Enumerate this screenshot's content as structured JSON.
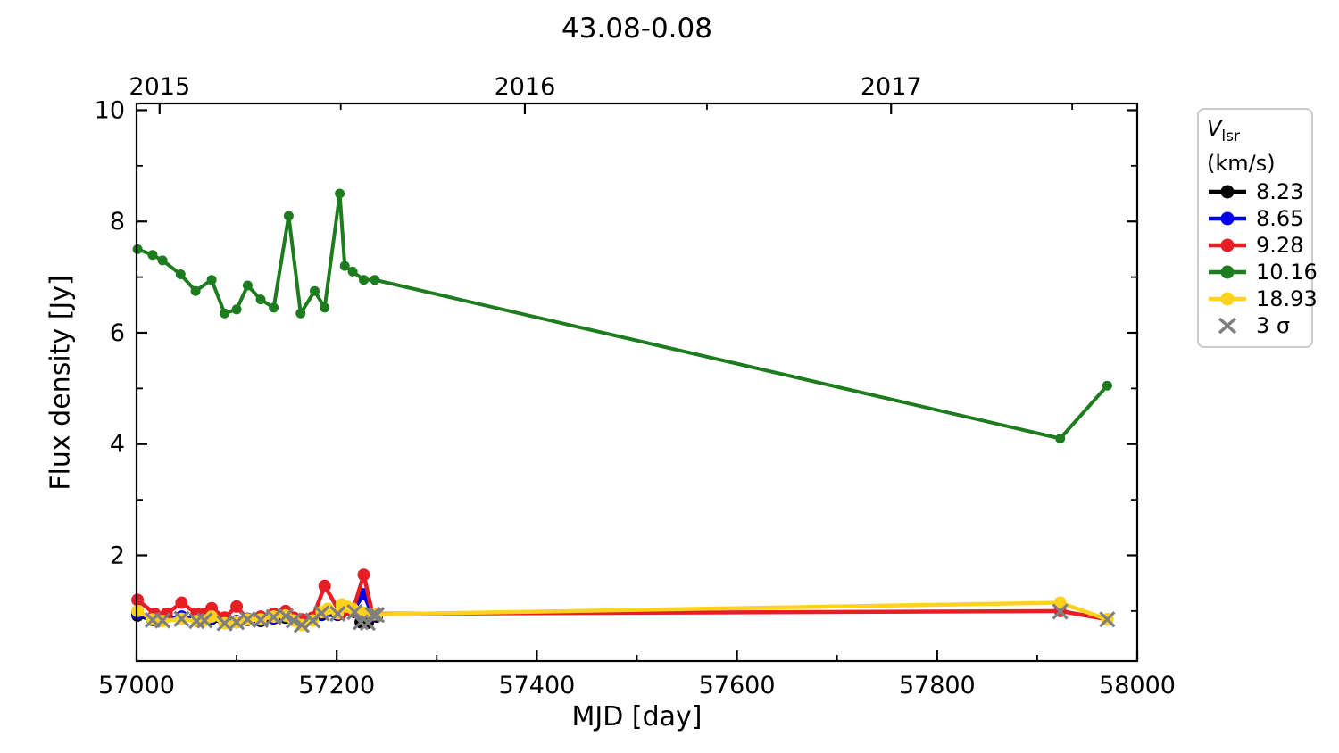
{
  "title": "43.08-0.08",
  "axes": {
    "xlabel": "MJD [day]",
    "ylabel": "Flux density [Jy]",
    "x_range": [
      57000,
      58000
    ],
    "y_range": [
      0.1,
      10.12
    ],
    "x_major_ticks": [
      57000,
      57200,
      57400,
      57600,
      57800,
      58000
    ],
    "x_minor_ticks": [
      57100,
      57300,
      57500,
      57700,
      57900
    ],
    "y_major_ticks": [
      2,
      4,
      6,
      8,
      10
    ],
    "y_minor_ticks": [
      1,
      3,
      5,
      7,
      9
    ],
    "top_axis": {
      "major": [
        {
          "label": "2015",
          "mjd": 57023
        },
        {
          "label": "2016",
          "mjd": 57388
        },
        {
          "label": "2017",
          "mjd": 57754
        }
      ],
      "minor_mjd": [
        57204,
        57570,
        57935
      ]
    }
  },
  "legend": {
    "title_v": "V",
    "title_sub": "lsr",
    "title_units": " (km/s)",
    "sigma_label": "3 σ",
    "sigma_color": "#7f7f7f"
  },
  "chart_data": {
    "type": "line",
    "title": "43.08-0.08",
    "xlabel": "MJD [day]",
    "ylabel": "Flux density [Jy]",
    "xlim": [
      57000,
      58000
    ],
    "legend_title": "V_lsr (km/s)",
    "series": [
      {
        "name": "8.23",
        "color": "#000000",
        "marker_radius": 7,
        "line_width": 4.5,
        "points": [
          [
            57001,
            0.92
          ],
          [
            57016,
            0.84
          ],
          [
            57026,
            0.84
          ],
          [
            57045,
            0.88
          ],
          [
            57060,
            0.84
          ],
          [
            57068,
            0.84
          ],
          [
            57075,
            0.86
          ],
          [
            57088,
            0.79
          ],
          [
            57100,
            0.8
          ],
          [
            57111,
            0.84
          ],
          [
            57124,
            0.82
          ],
          [
            57137,
            0.87
          ],
          [
            57149,
            0.88
          ],
          [
            57165,
            0.77
          ],
          [
            57176,
            0.84
          ],
          [
            57185,
            0.93
          ],
          [
            57201,
            0.93
          ],
          [
            57218,
            0.98
          ],
          [
            57224,
            0.8
          ],
          [
            57231,
            0.79
          ],
          [
            57240,
            0.9
          ]
        ]
      },
      {
        "name": "8.65",
        "color": "#0000ee",
        "marker_radius": 7,
        "line_width": 4.5,
        "points": [
          [
            57001,
            0.95
          ],
          [
            57016,
            0.85
          ],
          [
            57026,
            0.85
          ],
          [
            57045,
            0.9
          ],
          [
            57060,
            0.85
          ],
          [
            57068,
            0.85
          ],
          [
            57075,
            0.88
          ],
          [
            57088,
            0.8
          ],
          [
            57100,
            0.82
          ],
          [
            57111,
            0.86
          ],
          [
            57124,
            0.83
          ],
          [
            57137,
            0.88
          ],
          [
            57149,
            0.9
          ],
          [
            57165,
            0.78
          ],
          [
            57176,
            0.85
          ],
          [
            57185,
            0.95
          ],
          [
            57201,
            0.95
          ],
          [
            57216,
            1.0
          ],
          [
            57227,
            1.3
          ],
          [
            57236,
            0.92
          ],
          [
            57240,
            0.93
          ]
        ]
      },
      {
        "name": "9.28",
        "color": "#e81e25",
        "marker_radius": 7,
        "line_width": 4.5,
        "points": [
          [
            57001,
            1.2
          ],
          [
            57018,
            0.95
          ],
          [
            57030,
            0.95
          ],
          [
            57045,
            1.15
          ],
          [
            57060,
            0.95
          ],
          [
            57068,
            0.95
          ],
          [
            57075,
            1.05
          ],
          [
            57088,
            0.88
          ],
          [
            57100,
            1.08
          ],
          [
            57111,
            0.85
          ],
          [
            57124,
            0.9
          ],
          [
            57137,
            0.95
          ],
          [
            57149,
            1.0
          ],
          [
            57157,
            0.88
          ],
          [
            57165,
            0.85
          ],
          [
            57176,
            0.88
          ],
          [
            57188,
            1.45
          ],
          [
            57204,
            0.95
          ],
          [
            57216,
            1.0
          ],
          [
            57227,
            1.65
          ],
          [
            57236,
            0.93
          ],
          [
            57240,
            0.95
          ],
          [
            57923,
            1.0
          ],
          [
            57970,
            0.85
          ]
        ]
      },
      {
        "name": "10.16",
        "color": "#1c7c1e",
        "marker_radius": 5.5,
        "line_width": 4,
        "points": [
          [
            57001,
            7.5
          ],
          [
            57016,
            7.4
          ],
          [
            57026,
            7.3
          ],
          [
            57044,
            7.05
          ],
          [
            57059,
            6.75
          ],
          [
            57075,
            6.95
          ],
          [
            57088,
            6.35
          ],
          [
            57100,
            6.42
          ],
          [
            57111,
            6.85
          ],
          [
            57124,
            6.6
          ],
          [
            57137,
            6.45
          ],
          [
            57152,
            8.1
          ],
          [
            57164,
            6.35
          ],
          [
            57178,
            6.75
          ],
          [
            57188,
            6.45
          ],
          [
            57203,
            8.5
          ],
          [
            57208,
            7.2
          ],
          [
            57216,
            7.1
          ],
          [
            57227,
            6.95
          ],
          [
            57238,
            6.95
          ],
          [
            57923,
            4.1
          ],
          [
            57970,
            5.05
          ]
        ]
      },
      {
        "name": "18.93",
        "color": "#ffd21e",
        "marker_radius": 7,
        "line_width": 4.5,
        "points": [
          [
            57001,
            1.0
          ],
          [
            57016,
            0.85
          ],
          [
            57026,
            0.82
          ],
          [
            57045,
            0.86
          ],
          [
            57060,
            0.82
          ],
          [
            57068,
            0.83
          ],
          [
            57075,
            0.9
          ],
          [
            57088,
            0.78
          ],
          [
            57100,
            0.8
          ],
          [
            57111,
            0.85
          ],
          [
            57124,
            0.85
          ],
          [
            57137,
            0.9
          ],
          [
            57149,
            0.92
          ],
          [
            57157,
            0.83
          ],
          [
            57165,
            0.75
          ],
          [
            57176,
            0.83
          ],
          [
            57185,
            0.98
          ],
          [
            57191,
            1.04
          ],
          [
            57201,
            0.96
          ],
          [
            57205,
            1.12
          ],
          [
            57210,
            1.08
          ],
          [
            57216,
            1.04
          ],
          [
            57227,
            0.97
          ],
          [
            57236,
            0.94
          ],
          [
            57240,
            0.94
          ],
          [
            57923,
            1.15
          ],
          [
            57970,
            0.85
          ]
        ]
      }
    ],
    "sigma_markers": {
      "label": "3 σ",
      "color": "#7f7f7f",
      "points": [
        [
          57016,
          0.84
        ],
        [
          57026,
          0.83
        ],
        [
          57045,
          0.86
        ],
        [
          57060,
          0.82
        ],
        [
          57068,
          0.83
        ],
        [
          57088,
          0.78
        ],
        [
          57100,
          0.8
        ],
        [
          57111,
          0.85
        ],
        [
          57124,
          0.84
        ],
        [
          57137,
          0.89
        ],
        [
          57149,
          0.91
        ],
        [
          57157,
          0.83
        ],
        [
          57165,
          0.75
        ],
        [
          57176,
          0.83
        ],
        [
          57185,
          0.96
        ],
        [
          57201,
          0.95
        ],
        [
          57218,
          0.98
        ],
        [
          57224,
          0.8
        ],
        [
          57231,
          0.79
        ],
        [
          57236,
          0.93
        ],
        [
          57240,
          0.93
        ],
        [
          57923,
          0.99
        ],
        [
          57970,
          0.85
        ]
      ]
    }
  }
}
